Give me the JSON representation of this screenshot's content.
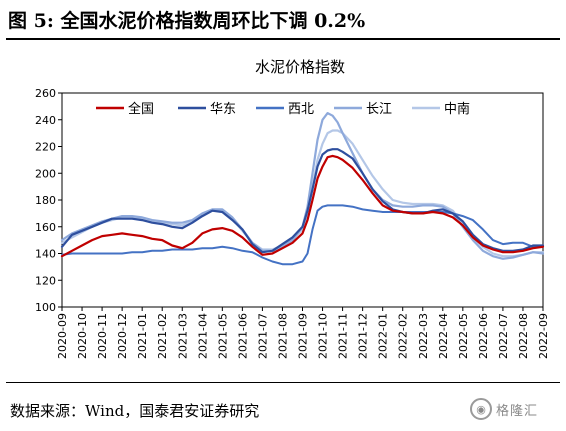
{
  "figure_title": "图 5:  全国水泥价格指数周环比下调 0.2%",
  "source_note": "数据来源：Wind，国泰君安证券研究",
  "watermark": {
    "text": "格隆汇",
    "icon": "wechat-logo-icon"
  },
  "chart_data": {
    "type": "line",
    "title": "水泥价格指数",
    "ylim": [
      100,
      260
    ],
    "yticks": [
      100,
      120,
      140,
      160,
      180,
      200,
      220,
      240,
      260
    ],
    "xlim": [
      0,
      24
    ],
    "xticks": [
      "2020-09",
      "2020-10",
      "2020-11",
      "2020-12",
      "2021-01",
      "2021-02",
      "2021-03",
      "2021-04",
      "2021-05",
      "2021-06",
      "2021-07",
      "2021-08",
      "2021-09",
      "2021-10",
      "2021-11",
      "2021-12",
      "2022-01",
      "2022-02",
      "2022-03",
      "2022-04",
      "2022-05",
      "2022-06",
      "2022-07",
      "2022-08",
      "2022-09"
    ],
    "grid": false,
    "legend": "top",
    "x": [
      0,
      0.5,
      1,
      1.5,
      2,
      2.5,
      3,
      3.5,
      4,
      4.5,
      5,
      5.5,
      6,
      6.5,
      7,
      7.5,
      8,
      8.5,
      9,
      9.5,
      10,
      10.5,
      11,
      11.5,
      12,
      12.25,
      12.5,
      12.75,
      13,
      13.25,
      13.5,
      13.75,
      14,
      14.5,
      15,
      15.5,
      16,
      16.5,
      17,
      17.5,
      18,
      18.5,
      19,
      19.5,
      20,
      20.5,
      21,
      21.5,
      22,
      22.5,
      23,
      23.5,
      24
    ],
    "series": [
      {
        "name": "全国",
        "color": "#c00000",
        "width": 2.2,
        "values": [
          138,
          142,
          146,
          150,
          153,
          154,
          155,
          154,
          153,
          151,
          150,
          146,
          144,
          148,
          155,
          158,
          159,
          157,
          152,
          145,
          139,
          140,
          144,
          148,
          155,
          165,
          180,
          196,
          205,
          212,
          213,
          212,
          210,
          204,
          195,
          185,
          176,
          172,
          171,
          170,
          170,
          171,
          170,
          167,
          161,
          152,
          146,
          143,
          141,
          141,
          142,
          144,
          145
        ]
      },
      {
        "name": "华东",
        "color": "#2e4f9e",
        "width": 2.2,
        "values": [
          145,
          154,
          157,
          160,
          163,
          166,
          166,
          166,
          165,
          163,
          162,
          160,
          159,
          163,
          168,
          172,
          171,
          165,
          158,
          147,
          141,
          142,
          147,
          152,
          160,
          172,
          188,
          205,
          214,
          217,
          218,
          218,
          216,
          211,
          200,
          188,
          179,
          173,
          171,
          170,
          170,
          172,
          173,
          170,
          164,
          154,
          147,
          144,
          142,
          142,
          143,
          146,
          146
        ]
      },
      {
        "name": "西北",
        "color": "#4472c4",
        "width": 2.0,
        "values": [
          139,
          140,
          140,
          140,
          140,
          140,
          140,
          141,
          141,
          142,
          142,
          143,
          143,
          143,
          144,
          144,
          145,
          144,
          142,
          141,
          137,
          134,
          132,
          132,
          134,
          140,
          158,
          172,
          175,
          176,
          176,
          176,
          176,
          175,
          173,
          172,
          171,
          171,
          171,
          171,
          171,
          171,
          171,
          170,
          168,
          165,
          158,
          150,
          147,
          148,
          148,
          145,
          145
        ]
      },
      {
        "name": "长江",
        "color": "#8ea9db",
        "width": 2.2,
        "values": [
          150,
          155,
          158,
          161,
          164,
          166,
          168,
          168,
          167,
          165,
          164,
          163,
          163,
          165,
          170,
          173,
          173,
          167,
          158,
          148,
          142,
          142,
          145,
          150,
          160,
          175,
          200,
          225,
          240,
          245,
          243,
          238,
          230,
          215,
          200,
          188,
          180,
          176,
          175,
          175,
          176,
          176,
          175,
          170,
          160,
          150,
          142,
          138,
          136,
          137,
          139,
          141,
          140
        ]
      },
      {
        "name": "中南",
        "color": "#b4c7e7",
        "width": 2.2,
        "values": [
          148,
          152,
          156,
          160,
          163,
          165,
          167,
          167,
          166,
          164,
          163,
          162,
          161,
          164,
          168,
          172,
          172,
          166,
          157,
          148,
          143,
          143,
          146,
          150,
          158,
          170,
          190,
          210,
          222,
          230,
          232,
          232,
          230,
          222,
          210,
          198,
          188,
          180,
          178,
          177,
          177,
          177,
          176,
          172,
          162,
          152,
          145,
          140,
          138,
          138,
          139,
          141,
          141
        ]
      }
    ]
  }
}
